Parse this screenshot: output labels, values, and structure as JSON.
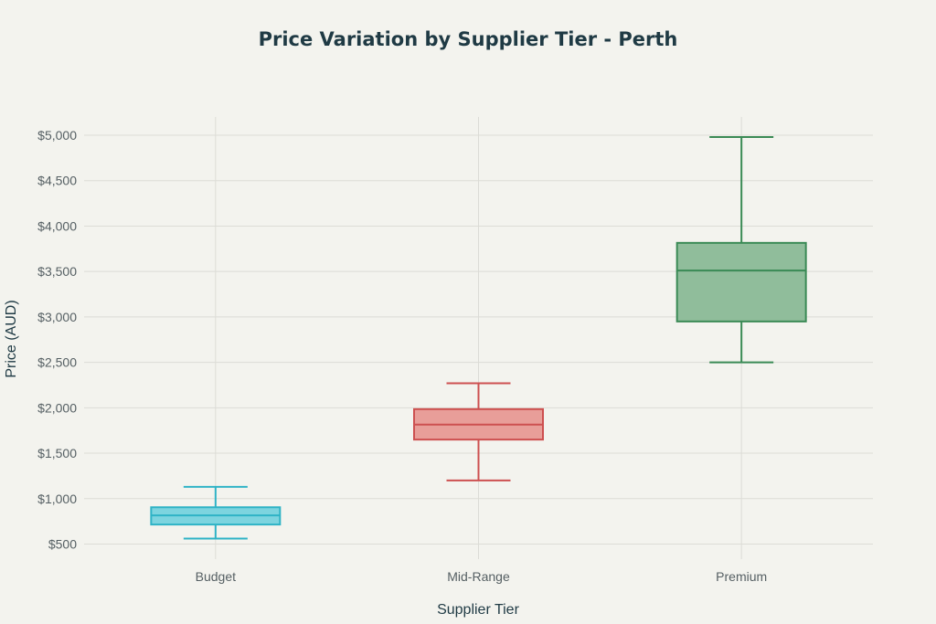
{
  "chart_data": {
    "type": "box",
    "title": "Price Variation by Supplier Tier - Perth",
    "xlabel": "Supplier Tier",
    "ylabel": "Price (AUD)",
    "categories": [
      "Budget",
      "Mid-Range",
      "Premium"
    ],
    "y_ticks": [
      500,
      1000,
      1500,
      2000,
      2500,
      3000,
      3500,
      4000,
      4500,
      5000
    ],
    "y_tick_labels": [
      "$500",
      "$1,000",
      "$1,500",
      "$2,000",
      "$2,500",
      "$3,000",
      "$3,500",
      "$4,000",
      "$4,500",
      "$5,000"
    ],
    "ylim": [
      400,
      5200
    ],
    "grid": true,
    "boxes": [
      {
        "category": "Budget",
        "min": 560,
        "q1": 715,
        "median": 815,
        "q3": 905,
        "max": 1130,
        "color": "#2fb3c6",
        "fill": "#7dd4df"
      },
      {
        "category": "Mid-Range",
        "min": 1200,
        "q1": 1650,
        "median": 1815,
        "q3": 1985,
        "max": 2270,
        "color": "#cd5050",
        "fill": "#e89e99"
      },
      {
        "category": "Premium",
        "min": 2500,
        "q1": 2950,
        "median": 3510,
        "q3": 3815,
        "max": 4980,
        "color": "#3a8a55",
        "fill": "#90bd9b"
      }
    ]
  }
}
